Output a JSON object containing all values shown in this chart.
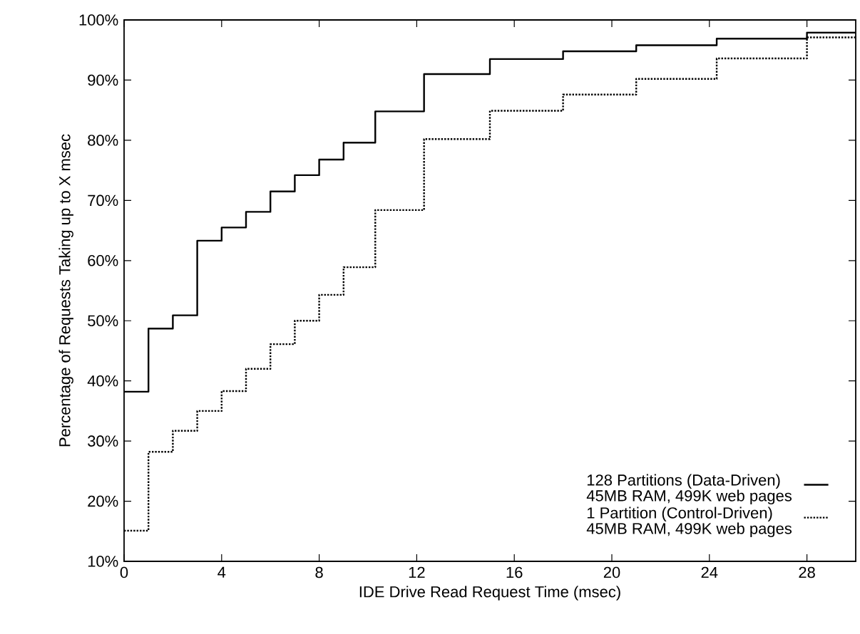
{
  "chart_data": {
    "type": "step",
    "xlabel": "IDE Drive Read Request Time (msec)",
    "ylabel": "Percentage of Requests Taking up to X msec",
    "xlim": [
      0,
      30
    ],
    "xticks": [
      0,
      4,
      8,
      12,
      16,
      20,
      24,
      28
    ],
    "ylim": [
      10,
      100
    ],
    "yticks": [
      {
        "value": 10,
        "label": "10%"
      },
      {
        "value": 20,
        "label": "20%"
      },
      {
        "value": 30,
        "label": "30%"
      },
      {
        "value": 40,
        "label": "40%"
      },
      {
        "value": 50,
        "label": "50%"
      },
      {
        "value": 60,
        "label": "60%"
      },
      {
        "value": 70,
        "label": "70%"
      },
      {
        "value": 80,
        "label": "80%"
      },
      {
        "value": 90,
        "label": "90%"
      },
      {
        "value": 100,
        "label": "100%"
      }
    ],
    "legend": "bottom right",
    "grid": false,
    "series": [
      {
        "name": "128 Partitions (Data-Driven) 45MB RAM, 499K web pages",
        "color": "#000000",
        "line_style": "solid",
        "x": [
          0,
          1,
          2,
          3,
          4,
          5,
          6,
          7,
          8,
          9,
          10.3,
          12.3,
          15,
          18,
          21,
          24.3,
          28,
          30
        ],
        "values": [
          38.2,
          48.7,
          50.9,
          63.3,
          65.5,
          68.1,
          71.5,
          74.2,
          76.8,
          79.6,
          84.8,
          91.0,
          93.5,
          94.8,
          95.8,
          96.9,
          97.9,
          97.9
        ]
      },
      {
        "name": "1 Partition (Control-Driven) 45MB RAM, 499K web pages",
        "color": "#000000",
        "line_style": "dotted",
        "x": [
          0,
          1,
          2,
          3,
          4,
          5,
          6,
          7,
          8,
          9,
          10.3,
          12.3,
          15,
          18,
          21,
          24.3,
          28,
          30
        ],
        "values": [
          15.1,
          28.2,
          31.7,
          35.0,
          38.3,
          42.0,
          46.1,
          50.0,
          54.3,
          58.9,
          68.4,
          80.2,
          84.9,
          87.6,
          90.2,
          93.6,
          97.1,
          97.1
        ]
      }
    ]
  }
}
